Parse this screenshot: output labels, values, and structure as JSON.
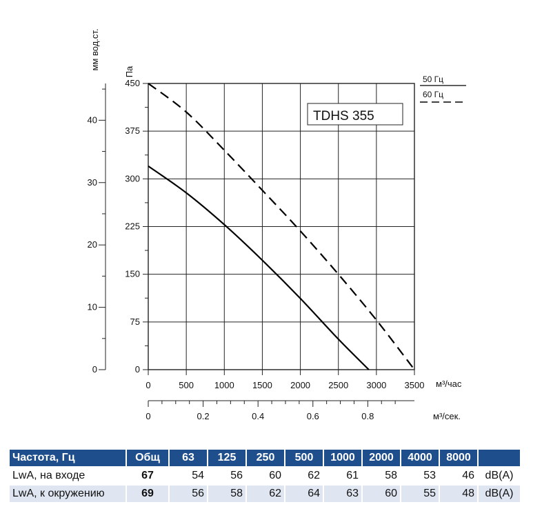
{
  "chart_data": {
    "type": "line",
    "model_label": "TDHS 355",
    "x_axis": {
      "label": "м³/час",
      "range": [
        0,
        3500
      ],
      "ticks": [
        "0",
        "500",
        "1000",
        "1500",
        "2000",
        "2500",
        "3000",
        "3500"
      ]
    },
    "x2_axis": {
      "label": "м³/сек.",
      "range": [
        0,
        0.97
      ],
      "ticks": [
        "0",
        "0.2",
        "0.4",
        "0.6",
        "0.8"
      ]
    },
    "y_axis": {
      "label": "Па",
      "range": [
        0,
        450
      ],
      "ticks": [
        "0",
        "75",
        "150",
        "225",
        "300",
        "375",
        "450"
      ]
    },
    "y2_axis": {
      "label": "мм вод.ст.",
      "range": [
        0,
        45.9
      ],
      "ticks": [
        "0",
        "10",
        "20",
        "30",
        "40"
      ]
    },
    "grid": true,
    "legend_position": "top-right",
    "series": [
      {
        "name": "50 Гц",
        "style": "solid",
        "color": "#000000",
        "x": [
          0,
          500,
          1000,
          1500,
          2000,
          2500,
          2900
        ],
        "y": [
          320,
          278,
          228,
          172,
          112,
          48,
          0
        ]
      },
      {
        "name": "60 Гц",
        "style": "dashed",
        "color": "#000000",
        "x": [
          0,
          500,
          1000,
          1500,
          2000,
          2500,
          3000,
          3500
        ],
        "y": [
          450,
          405,
          345,
          282,
          218,
          150,
          78,
          0
        ]
      }
    ]
  },
  "noise_table": {
    "header": [
      "Частота, Гц",
      "Общ",
      "63",
      "125",
      "250",
      "500",
      "1000",
      "2000",
      "4000",
      "8000",
      ""
    ],
    "rows": [
      {
        "label": "LwA, на входе",
        "total": "67",
        "values": [
          "54",
          "56",
          "60",
          "62",
          "61",
          "58",
          "53",
          "46"
        ],
        "unit": "dB(A)"
      },
      {
        "label": "LwA, к окружению",
        "total": "69",
        "values": [
          "56",
          "58",
          "62",
          "64",
          "63",
          "60",
          "55",
          "48"
        ],
        "unit": "dB(A)"
      }
    ],
    "colors": {
      "header_bg": "#1f4e8c",
      "alt_row_bg": "#dfe6f2"
    }
  }
}
